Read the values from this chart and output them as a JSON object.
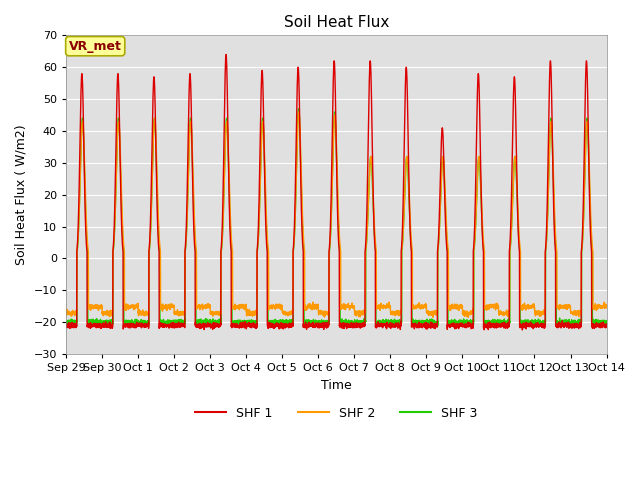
{
  "title": "Soil Heat Flux",
  "ylabel": "Soil Heat Flux ( W/m2)",
  "xlabel": "Time",
  "ylim": [
    -30,
    70
  ],
  "yticks": [
    -30,
    -20,
    -10,
    0,
    10,
    20,
    30,
    40,
    50,
    60,
    70
  ],
  "bg_color": "#e0e0e0",
  "colors": {
    "SHF 1": "#dd0000",
    "SHF 2": "#ff9900",
    "SHF 3": "#22cc00"
  },
  "annotation_text": "VR_met",
  "annotation_color": "#8b0000",
  "annotation_bg": "#ffff99",
  "x_tick_labels": [
    "Sep 29",
    "Sep 30",
    "Oct 1",
    "Oct 2",
    "Oct 3",
    "Oct 4",
    "Oct 5",
    "Oct 6",
    "Oct 7",
    "Oct 8",
    "Oct 9",
    "Oct 10",
    "Oct 11",
    "Oct 12",
    "Oct 13",
    "Oct 14"
  ],
  "n_days": 15,
  "spd": 288,
  "peaks_1": [
    58,
    58,
    57,
    58,
    64,
    59,
    60,
    62,
    62,
    60,
    41,
    58,
    57,
    62,
    62
  ],
  "peaks_2": [
    43,
    43,
    44,
    43,
    43,
    43,
    46,
    45,
    32,
    32,
    32,
    32,
    32,
    43,
    43
  ],
  "peaks_3": [
    44,
    44,
    44,
    44,
    44,
    44,
    47,
    46,
    32,
    32,
    32,
    32,
    32,
    44,
    44
  ],
  "night_1": -21,
  "night_2": -15,
  "night_3": -20,
  "grid_color": "#ffffff",
  "legend_entries": [
    "SHF 1",
    "SHF 2",
    "SHF 3"
  ]
}
